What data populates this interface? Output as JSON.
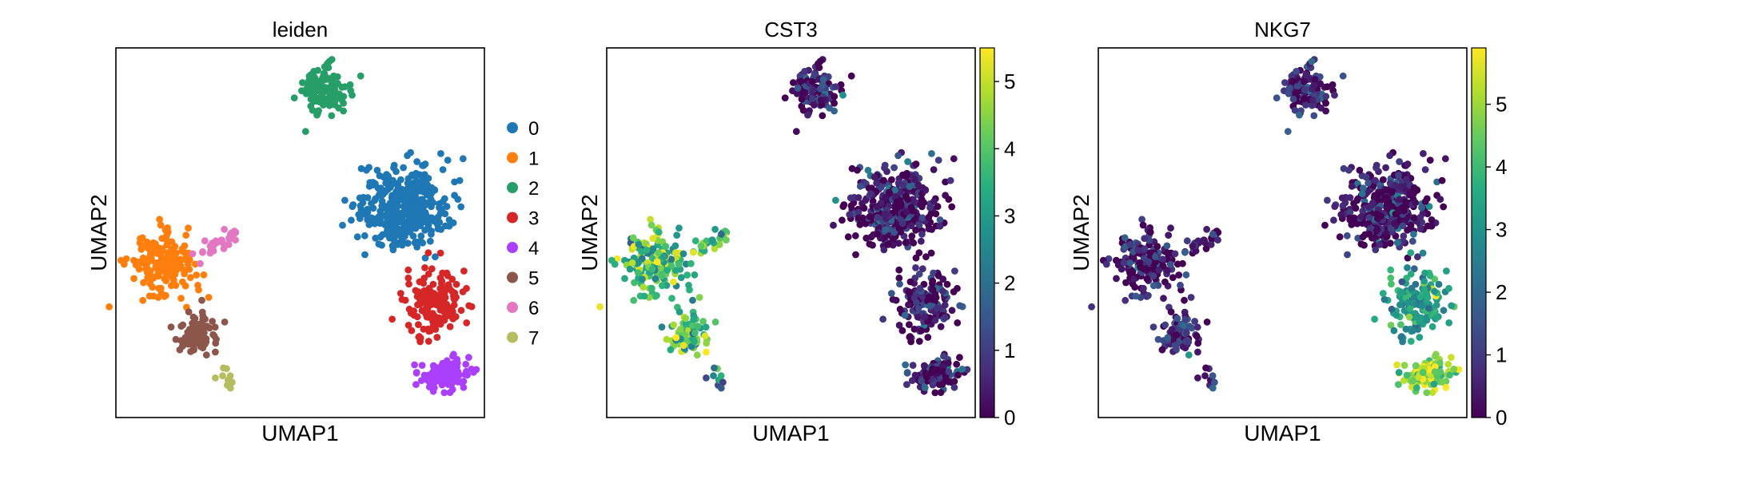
{
  "chart_data": [
    {
      "type": "scatter",
      "title": "leiden",
      "xlabel": "UMAP1",
      "ylabel": "UMAP2",
      "xlim": [
        -11,
        14
      ],
      "ylim": [
        -8,
        17
      ],
      "color_mode": "categorical",
      "legend": {
        "placement": "right",
        "entries": [
          {
            "label": "0",
            "color": "#1f77b4"
          },
          {
            "label": "1",
            "color": "#ff7f0e"
          },
          {
            "label": "2",
            "color": "#279e68"
          },
          {
            "label": "3",
            "color": "#d62728"
          },
          {
            "label": "4",
            "color": "#aa40fc"
          },
          {
            "label": "5",
            "color": "#8c564b"
          },
          {
            "label": "6",
            "color": "#e377c2"
          },
          {
            "label": "7",
            "color": "#b5bd61"
          }
        ]
      },
      "clusters": [
        {
          "category": "0",
          "center": [
            8.5,
            6.2
          ],
          "spread": [
            3.3,
            3.0
          ],
          "n": 380
        },
        {
          "category": "1",
          "center": [
            -7.9,
            2.3
          ],
          "spread": [
            2.4,
            2.3
          ],
          "n": 170
        },
        {
          "category": "2",
          "center": [
            3.1,
            14.2
          ],
          "spread": [
            1.8,
            1.8
          ],
          "n": 120
        },
        {
          "category": "3",
          "center": [
            10.6,
            -0.2
          ],
          "spread": [
            2.3,
            2.5
          ],
          "n": 160
        },
        {
          "category": "4",
          "center": [
            11.2,
            -5.1
          ],
          "spread": [
            1.8,
            1.2
          ],
          "n": 110
        },
        {
          "category": "5",
          "center": [
            -5.4,
            -2.2
          ],
          "spread": [
            1.8,
            1.6
          ],
          "n": 80
        },
        {
          "category": "6",
          "center": [
            -4.1,
            3.6
          ],
          "spread": [
            4.0,
            1.5
          ],
          "n": 30,
          "shape": "line",
          "from": [
            -5.6,
            2.7
          ],
          "to": [
            -2.6,
            4.9
          ]
        },
        {
          "category": "7",
          "center": [
            -3.5,
            -5.3
          ],
          "spread": [
            1.0,
            1.0
          ],
          "n": 10,
          "shape": "line",
          "from": [
            -3.9,
            -4.9
          ],
          "to": [
            -3.1,
            -5.8
          ]
        }
      ]
    },
    {
      "type": "scatter",
      "title": "CST3",
      "xlabel": "UMAP1",
      "ylabel": "UMAP2",
      "xlim": [
        -11,
        14
      ],
      "ylim": [
        -8,
        17
      ],
      "color_mode": "continuous",
      "colorbar": {
        "min": 0,
        "max": 5.5,
        "ticks": [
          0,
          1,
          2,
          3,
          4,
          5
        ],
        "colormap": "viridis"
      },
      "clusters": [
        {
          "center": [
            8.5,
            6.2
          ],
          "spread": [
            3.3,
            3.0
          ],
          "n": 380,
          "value_mean": 0.3
        },
        {
          "center": [
            -7.9,
            2.3
          ],
          "spread": [
            2.4,
            2.3
          ],
          "n": 170,
          "value_mean": 3.9
        },
        {
          "center": [
            3.1,
            14.2
          ],
          "spread": [
            1.8,
            1.8
          ],
          "n": 120,
          "value_mean": 0.4
        },
        {
          "center": [
            10.6,
            -0.2
          ],
          "spread": [
            2.3,
            2.5
          ],
          "n": 160,
          "value_mean": 0.3
        },
        {
          "center": [
            11.2,
            -5.1
          ],
          "spread": [
            1.8,
            1.2
          ],
          "n": 110,
          "value_mean": 0.5
        },
        {
          "center": [
            -5.4,
            -2.2
          ],
          "spread": [
            1.8,
            1.6
          ],
          "n": 80,
          "value_mean": 4.0
        },
        {
          "center": [
            -4.1,
            3.6
          ],
          "spread": [
            4.0,
            1.5
          ],
          "n": 30,
          "value_mean": 3.8,
          "shape": "line",
          "from": [
            -5.6,
            2.7
          ],
          "to": [
            -2.6,
            4.9
          ]
        },
        {
          "center": [
            -3.5,
            -5.3
          ],
          "spread": [
            1.0,
            1.0
          ],
          "n": 10,
          "value_mean": 2.0,
          "shape": "line",
          "from": [
            -3.9,
            -4.9
          ],
          "to": [
            -3.1,
            -5.8
          ]
        }
      ]
    },
    {
      "type": "scatter",
      "title": "NKG7",
      "xlabel": "UMAP1",
      "ylabel": "UMAP2",
      "xlim": [
        -11,
        14
      ],
      "ylim": [
        -8,
        17
      ],
      "color_mode": "continuous",
      "colorbar": {
        "min": 0,
        "max": 5.9,
        "ticks": [
          0,
          1,
          2,
          3,
          4,
          5
        ],
        "colormap": "viridis"
      },
      "clusters": [
        {
          "center": [
            8.5,
            6.2
          ],
          "spread": [
            3.3,
            3.0
          ],
          "n": 380,
          "value_mean": 0.4
        },
        {
          "center": [
            -7.9,
            2.3
          ],
          "spread": [
            2.4,
            2.3
          ],
          "n": 170,
          "value_mean": 0.4
        },
        {
          "center": [
            3.1,
            14.2
          ],
          "spread": [
            1.8,
            1.8
          ],
          "n": 120,
          "value_mean": 0.5
        },
        {
          "center": [
            10.6,
            -0.2
          ],
          "spread": [
            2.3,
            2.5
          ],
          "n": 160,
          "value_mean": 3.2
        },
        {
          "center": [
            11.2,
            -5.1
          ],
          "spread": [
            1.8,
            1.2
          ],
          "n": 110,
          "value_mean": 5.0
        },
        {
          "center": [
            -5.4,
            -2.2
          ],
          "spread": [
            1.8,
            1.6
          ],
          "n": 80,
          "value_mean": 0.8
        },
        {
          "center": [
            -4.1,
            3.6
          ],
          "spread": [
            4.0,
            1.5
          ],
          "n": 30,
          "value_mean": 0.4,
          "shape": "line",
          "from": [
            -5.6,
            2.7
          ],
          "to": [
            -2.6,
            4.9
          ]
        },
        {
          "center": [
            -3.5,
            -5.3
          ],
          "spread": [
            1.0,
            1.0
          ],
          "n": 10,
          "value_mean": 0.6,
          "shape": "line",
          "from": [
            -3.9,
            -4.9
          ],
          "to": [
            -3.1,
            -5.8
          ]
        }
      ]
    }
  ]
}
